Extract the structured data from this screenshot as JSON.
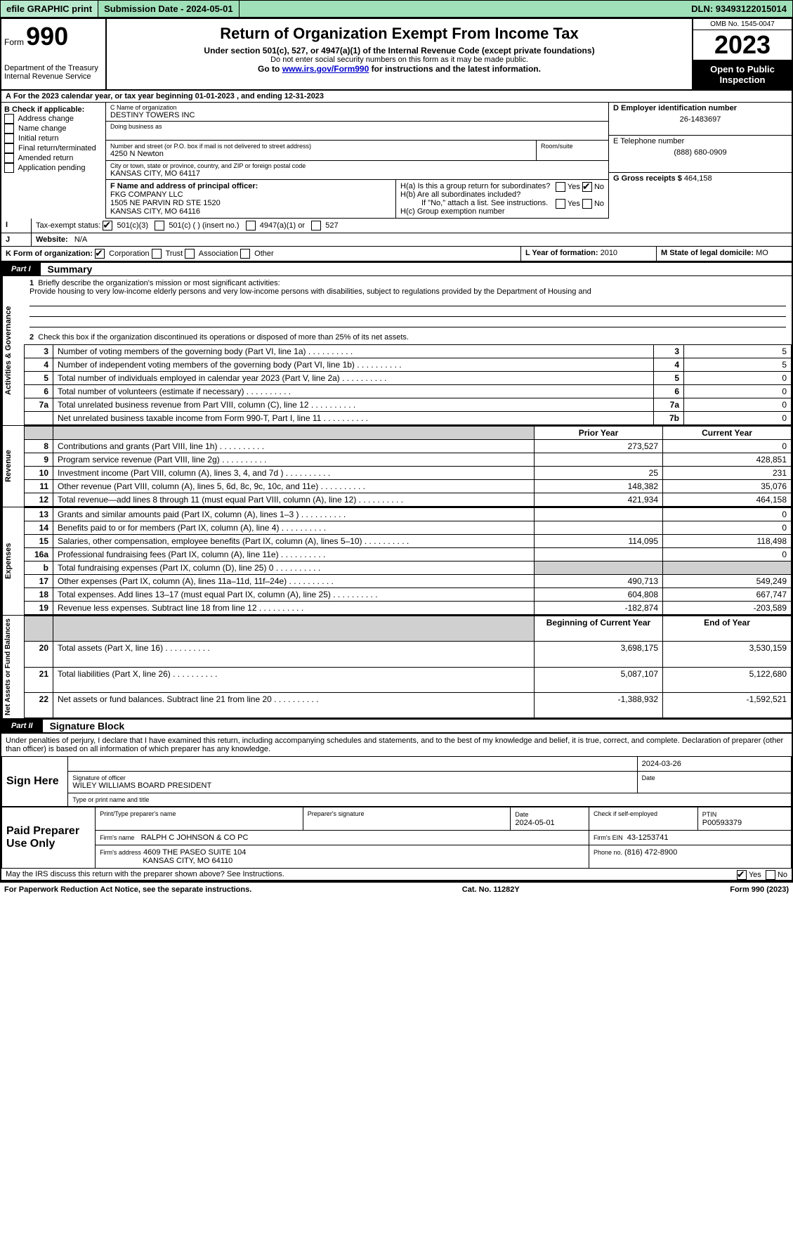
{
  "topbar": {
    "efile": "efile GRAPHIC print",
    "submission": "Submission Date - 2024-05-01",
    "dln": "DLN: 93493122015014"
  },
  "header": {
    "formWord": "Form",
    "form990": "990",
    "dept": "Department of the Treasury\nInternal Revenue Service",
    "title": "Return of Organization Exempt From Income Tax",
    "subtitle": "Under section 501(c), 527, or 4947(a)(1) of the Internal Revenue Code (except private foundations)",
    "line2": "Do not enter social security numbers on this form as it may be made public.",
    "line3a": "Go to ",
    "line3link": "www.irs.gov/Form990",
    "line3b": " for instructions and the latest information.",
    "omb": "OMB No. 1545-0047",
    "year": "2023",
    "inspection": "Open to Public Inspection"
  },
  "lineA": "For the 2023 calendar year, or tax year beginning 01-01-2023   , and ending 12-31-2023",
  "boxB": {
    "title": "B Check if applicable:",
    "items": [
      "Address change",
      "Name change",
      "Initial return",
      "Final return/terminated",
      "Amended return",
      "Application pending"
    ]
  },
  "boxC": {
    "label": "C Name of organization",
    "name": "DESTINY TOWERS INC",
    "dba": "Doing business as",
    "streetLabel": "Number and street (or P.O. box if mail is not delivered to street address)",
    "room": "Room/suite",
    "street": "4250 N Newton",
    "cityLabel": "City or town, state or province, country, and ZIP or foreign postal code",
    "city": "KANSAS CITY, MO  64117"
  },
  "boxD": {
    "label": "D Employer identification number",
    "value": "26-1483697"
  },
  "boxE": {
    "label": "E Telephone number",
    "value": "(888) 680-0909"
  },
  "boxG": {
    "label": "G Gross receipts $",
    "value": "464,158"
  },
  "boxF": {
    "label": "F  Name and address of principal officer:",
    "name": "FKG COMPANY LLC",
    "addr1": "1505 NE PARVIN RD STE 1520",
    "addr2": "KANSAS CITY, MO  64116"
  },
  "boxH": {
    "a": "H(a)  Is this a group return for subordinates?",
    "b": "H(b)  Are all subordinates included?",
    "bNote": "If \"No,\" attach a list. See instructions.",
    "c": "H(c)  Group exemption number",
    "yes": "Yes",
    "no": "No"
  },
  "boxI": {
    "label": "Tax-exempt status:",
    "opt1": "501(c)(3)",
    "opt2": "501(c) (  ) (insert no.)",
    "opt3": "4947(a)(1) or",
    "opt4": "527"
  },
  "boxJ": {
    "label": "Website:",
    "value": "N/A"
  },
  "boxK": {
    "label": "K Form of organization:",
    "corp": "Corporation",
    "trust": "Trust",
    "assoc": "Association",
    "other": "Other"
  },
  "boxL": {
    "label": "L Year of formation:",
    "value": "2010"
  },
  "boxM": {
    "label": "M State of legal domicile:",
    "value": "MO"
  },
  "part1": {
    "tab": "Part I",
    "title": "Summary",
    "l1label": "Briefly describe the organization's mission or most significant activities:",
    "l1text": "Provide housing to very low-income elderly persons and very low-income persons with disabilities, subject to regulations provided by the Department of Housing and",
    "l2": "Check this box         if the organization discontinued its operations or disposed of more than 25% of its net assets.",
    "rowsA": [
      {
        "n": "3",
        "d": "Number of voting members of the governing body (Part VI, line 1a)",
        "k": "3",
        "v": "5"
      },
      {
        "n": "4",
        "d": "Number of independent voting members of the governing body (Part VI, line 1b)",
        "k": "4",
        "v": "5"
      },
      {
        "n": "5",
        "d": "Total number of individuals employed in calendar year 2023 (Part V, line 2a)",
        "k": "5",
        "v": "0"
      },
      {
        "n": "6",
        "d": "Total number of volunteers (estimate if necessary)",
        "k": "6",
        "v": "0"
      },
      {
        "n": "7a",
        "d": "Total unrelated business revenue from Part VIII, column (C), line 12",
        "k": "7a",
        "v": "0"
      },
      {
        "n": "",
        "d": "Net unrelated business taxable income from Form 990-T, Part I, line 11",
        "k": "7b",
        "v": "0"
      }
    ],
    "colPrior": "Prior Year",
    "colCurrent": "Current Year",
    "revenue": [
      {
        "n": "8",
        "d": "Contributions and grants (Part VIII, line 1h)",
        "p": "273,527",
        "c": "0"
      },
      {
        "n": "9",
        "d": "Program service revenue (Part VIII, line 2g)",
        "p": "",
        "c": "428,851"
      },
      {
        "n": "10",
        "d": "Investment income (Part VIII, column (A), lines 3, 4, and 7d )",
        "p": "25",
        "c": "231"
      },
      {
        "n": "11",
        "d": "Other revenue (Part VIII, column (A), lines 5, 6d, 8c, 9c, 10c, and 11e)",
        "p": "148,382",
        "c": "35,076"
      },
      {
        "n": "12",
        "d": "Total revenue—add lines 8 through 11 (must equal Part VIII, column (A), line 12)",
        "p": "421,934",
        "c": "464,158"
      }
    ],
    "expenses": [
      {
        "n": "13",
        "d": "Grants and similar amounts paid (Part IX, column (A), lines 1–3 )",
        "p": "",
        "c": "0"
      },
      {
        "n": "14",
        "d": "Benefits paid to or for members (Part IX, column (A), line 4)",
        "p": "",
        "c": "0"
      },
      {
        "n": "15",
        "d": "Salaries, other compensation, employee benefits (Part IX, column (A), lines 5–10)",
        "p": "114,095",
        "c": "118,498"
      },
      {
        "n": "16a",
        "d": "Professional fundraising fees (Part IX, column (A), line 11e)",
        "p": "",
        "c": "0"
      },
      {
        "n": "b",
        "d": "Total fundraising expenses (Part IX, column (D), line 25) 0",
        "p": "GREY",
        "c": "GREY"
      },
      {
        "n": "17",
        "d": "Other expenses (Part IX, column (A), lines 11a–11d, 11f–24e)",
        "p": "490,713",
        "c": "549,249"
      },
      {
        "n": "18",
        "d": "Total expenses. Add lines 13–17 (must equal Part IX, column (A), line 25)",
        "p": "604,808",
        "c": "667,747"
      },
      {
        "n": "19",
        "d": "Revenue less expenses. Subtract line 18 from line 12",
        "p": "-182,874",
        "c": "-203,589"
      }
    ],
    "colBegin": "Beginning of Current Year",
    "colEnd": "End of Year",
    "netassets": [
      {
        "n": "20",
        "d": "Total assets (Part X, line 16)",
        "p": "3,698,175",
        "c": "3,530,159"
      },
      {
        "n": "21",
        "d": "Total liabilities (Part X, line 26)",
        "p": "5,087,107",
        "c": "5,122,680"
      },
      {
        "n": "22",
        "d": "Net assets or fund balances. Subtract line 21 from line 20",
        "p": "-1,388,932",
        "c": "-1,592,521"
      }
    ],
    "sideA": "Activities & Governance",
    "sideR": "Revenue",
    "sideE": "Expenses",
    "sideN": "Net Assets or\nFund Balances"
  },
  "part2": {
    "tab": "Part II",
    "title": "Signature Block",
    "penalty": "Under penalties of perjury, I declare that I have examined this return, including accompanying schedules and statements, and to the best of my knowledge and belief, it is true, correct, and complete. Declaration of preparer (other than officer) is based on all information of which preparer has any knowledge.",
    "signHere": "Sign Here",
    "sigOfficer": "Signature of officer",
    "officerName": "WILEY WILLIAMS BOARD PRESIDENT",
    "typeName": "Type or print name and title",
    "date": "Date",
    "sigDate": "2024-03-26",
    "paid": "Paid Preparer Use Only",
    "prepName": "Print/Type preparer's name",
    "prepSig": "Preparer's signature",
    "prepDate": "2024-05-01",
    "checkSelf": "Check         if self-employed",
    "ptinL": "PTIN",
    "ptin": "P00593379",
    "firmName": "Firm's name",
    "firmNameV": "RALPH C JOHNSON & CO PC",
    "firmEinL": "Firm's EIN",
    "firmEin": "43-1253741",
    "firmAddr": "Firm's address",
    "firmAddrV1": "4609 THE PASEO SUITE 104",
    "firmAddrV2": "KANSAS CITY, MO  64110",
    "phoneL": "Phone no.",
    "phone": "(816) 472-8900",
    "discuss": "May the IRS discuss this return with the preparer shown above? See Instructions.",
    "yes": "Yes",
    "no": "No"
  },
  "footer": {
    "left": "For Paperwork Reduction Act Notice, see the separate instructions.",
    "mid": "Cat. No. 11282Y",
    "right": "Form 990 (2023)"
  }
}
